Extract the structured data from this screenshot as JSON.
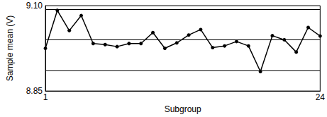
{
  "chart_data": {
    "type": "line",
    "x_label": "Subgroup",
    "y_label": "Sample mean (V)",
    "x": [
      1,
      2,
      3,
      4,
      5,
      6,
      7,
      8,
      9,
      10,
      11,
      12,
      13,
      14,
      15,
      16,
      17,
      18,
      19,
      20,
      21,
      22,
      23,
      24
    ],
    "values": [
      8.975,
      9.086,
      9.027,
      9.071,
      8.989,
      8.986,
      8.98,
      8.989,
      8.989,
      9.021,
      8.975,
      8.991,
      9.014,
      9.03,
      8.977,
      8.982,
      8.995,
      8.982,
      8.907,
      9.012,
      9.0,
      8.964,
      9.036,
      9.011
    ],
    "hlines": [
      9.087,
      9.0,
      8.913
    ],
    "xlim": [
      1,
      24
    ],
    "xticks": [
      1,
      24
    ],
    "ylim": [
      8.85,
      9.1
    ],
    "yticks": [
      8.85,
      {
        "value": 9.1,
        "label": "9.10"
      }
    ],
    "color": "#000000",
    "marker": "circle",
    "line_style": "solid",
    "grid": false
  }
}
